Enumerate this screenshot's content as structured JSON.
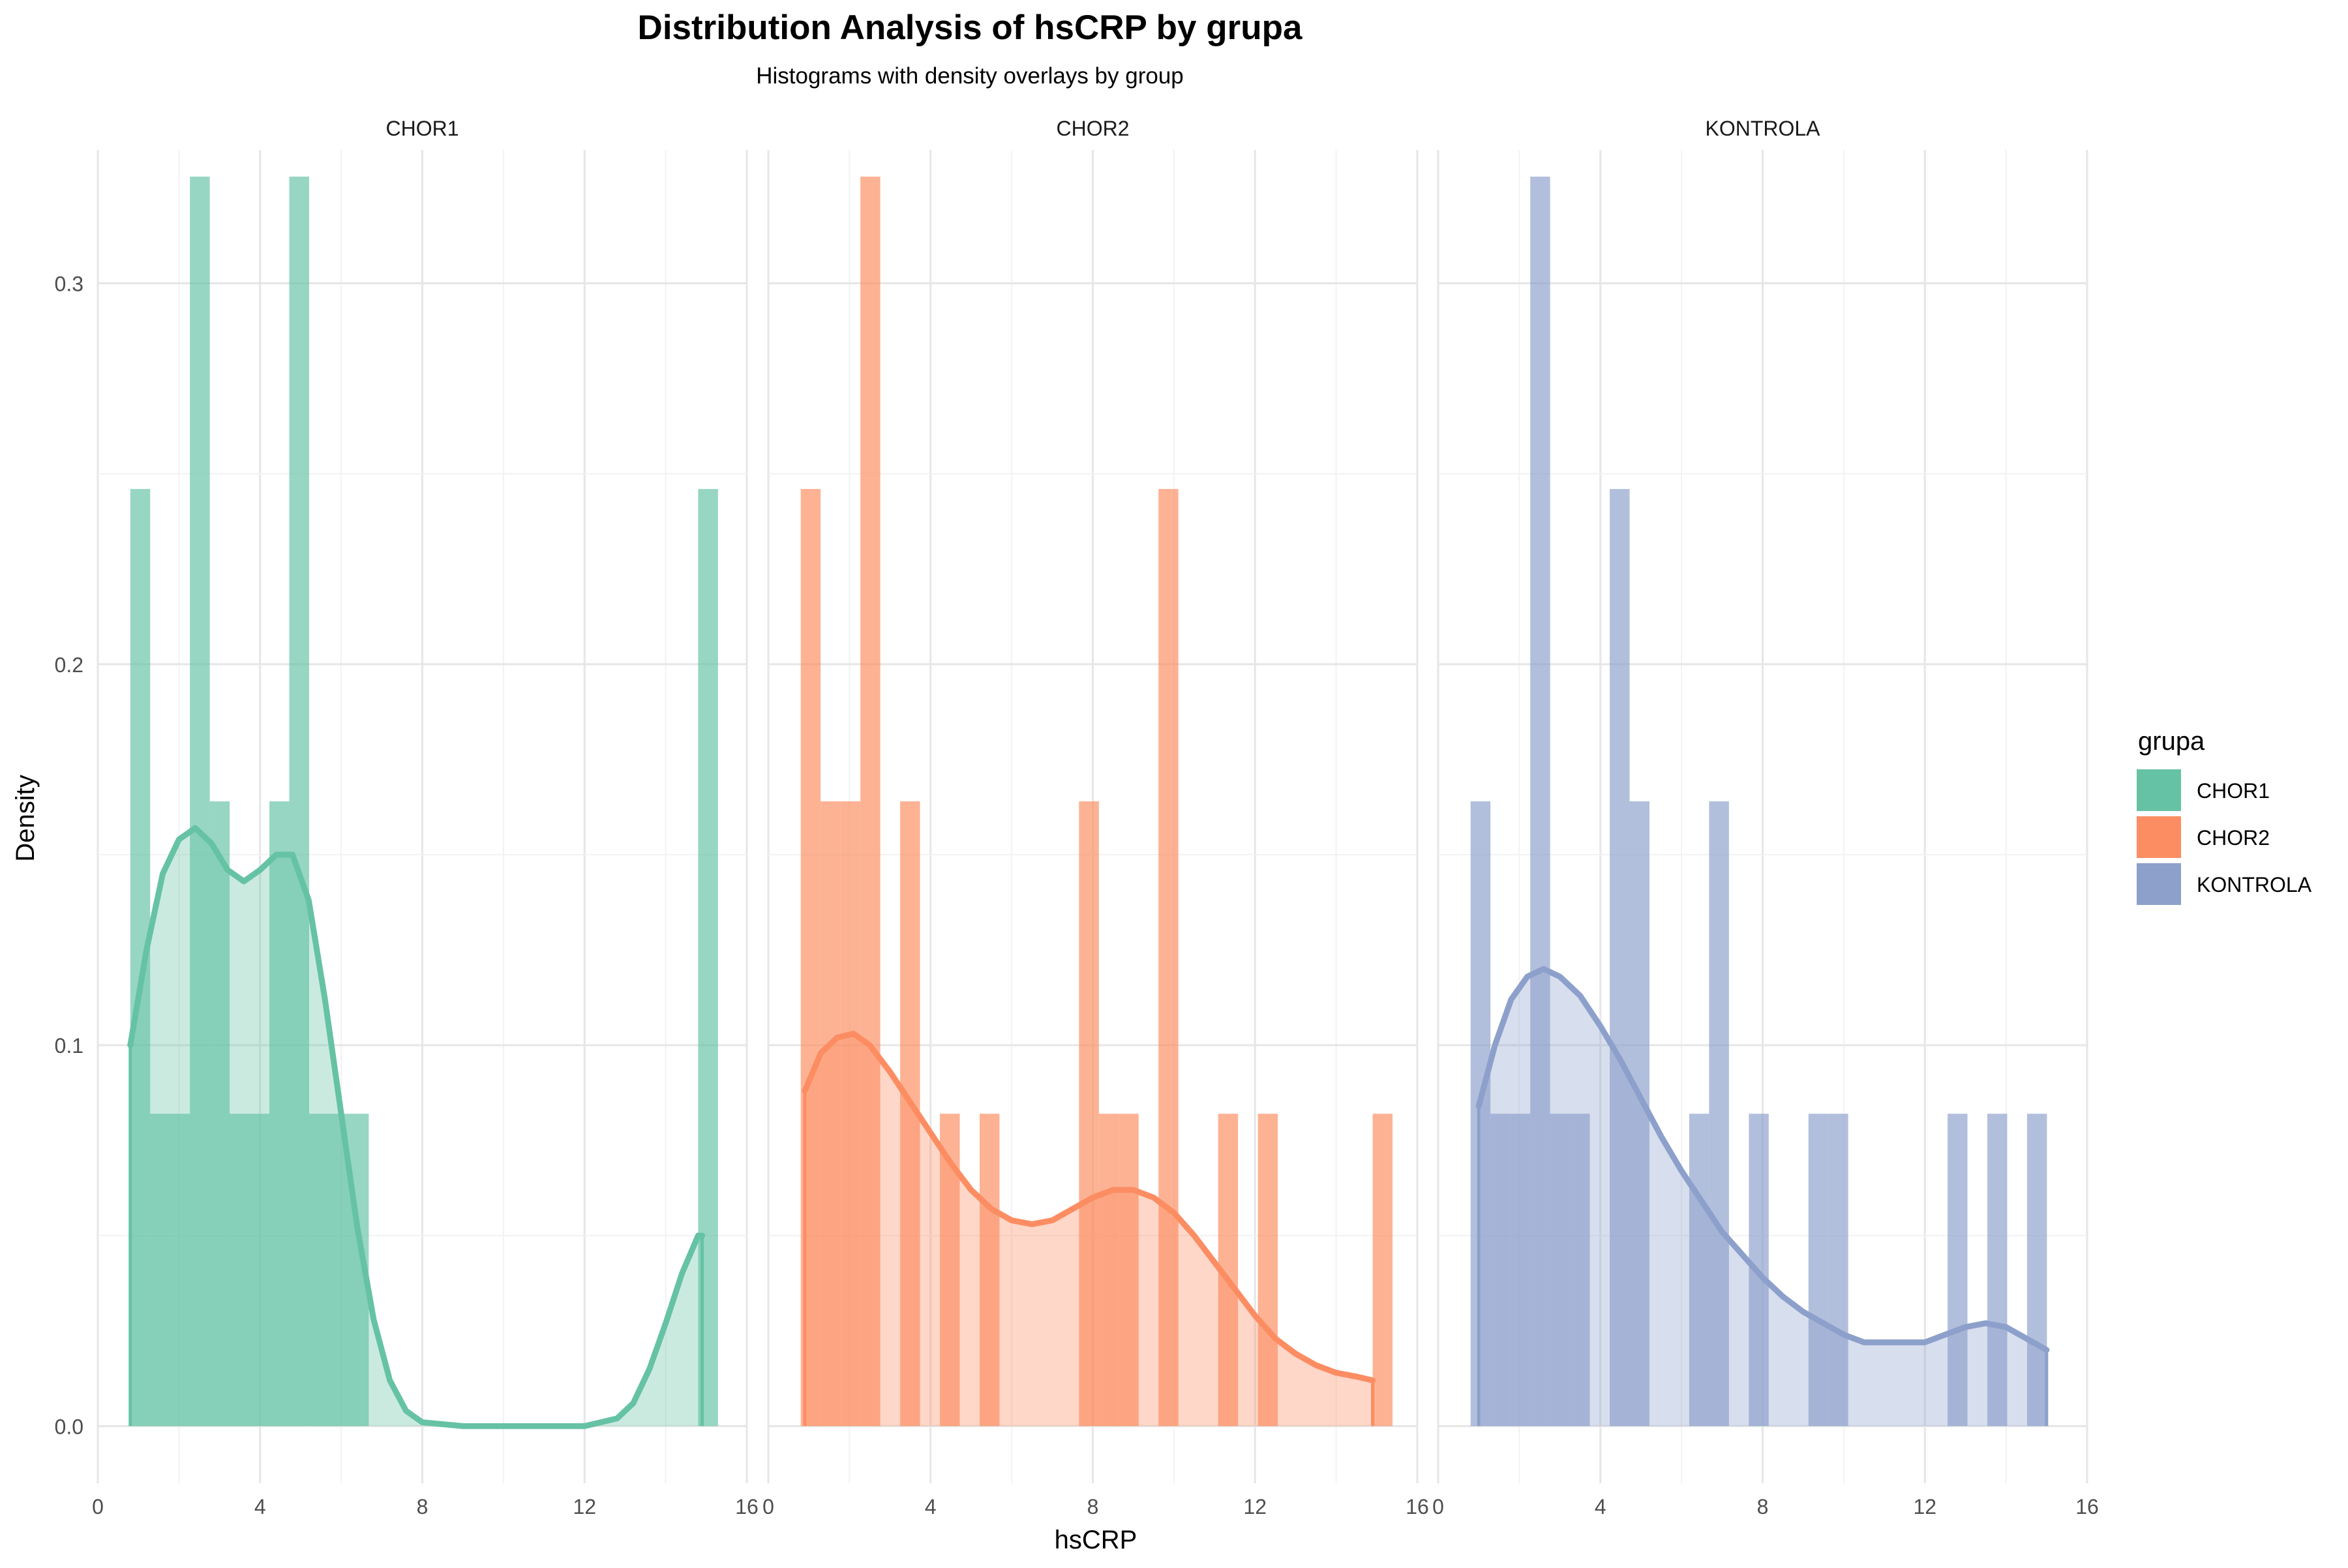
{
  "chart_data": {
    "type": "histogram-density-facets",
    "title": "Distribution Analysis of hsCRP by grupa",
    "subtitle": "Histograms with density overlays by group",
    "xlabel": "hsCRP",
    "ylabel": "Density",
    "xlim": [
      0,
      16
    ],
    "ylim": [
      -0.015,
      0.335
    ],
    "x_ticks": [
      0,
      4,
      8,
      12,
      16
    ],
    "x_tick_labels": [
      "0",
      "4",
      "8",
      "12",
      "16"
    ],
    "y_ticks": [
      0.0,
      0.1,
      0.2,
      0.3
    ],
    "y_tick_labels": [
      "0.0",
      "0.1",
      "0.2",
      "0.3"
    ],
    "grid": true,
    "legend": {
      "title": "grupa",
      "placement": "right",
      "entries": [
        "CHOR1",
        "CHOR2",
        "KONTROLA"
      ]
    },
    "facets": [
      {
        "name": "CHOR1",
        "color": "#66c2a5",
        "bin_width": 0.49,
        "bins": [
          {
            "x0": 0.8,
            "density": 0.246
          },
          {
            "x0": 1.29,
            "density": 0.082
          },
          {
            "x0": 1.78,
            "density": 0.082
          },
          {
            "x0": 2.27,
            "density": 0.328
          },
          {
            "x0": 2.76,
            "density": 0.164
          },
          {
            "x0": 3.25,
            "density": 0.082
          },
          {
            "x0": 3.74,
            "density": 0.082
          },
          {
            "x0": 4.23,
            "density": 0.164
          },
          {
            "x0": 4.72,
            "density": 0.328
          },
          {
            "x0": 5.21,
            "density": 0.082
          },
          {
            "x0": 5.7,
            "density": 0.082
          },
          {
            "x0": 6.19,
            "density": 0.082
          },
          {
            "x0": 14.8,
            "density": 0.246
          }
        ],
        "density_curve": [
          [
            0.8,
            0.1
          ],
          [
            1.2,
            0.125
          ],
          [
            1.6,
            0.145
          ],
          [
            2.0,
            0.154
          ],
          [
            2.4,
            0.157
          ],
          [
            2.8,
            0.153
          ],
          [
            3.2,
            0.146
          ],
          [
            3.6,
            0.143
          ],
          [
            4.0,
            0.146
          ],
          [
            4.4,
            0.15
          ],
          [
            4.8,
            0.15
          ],
          [
            5.2,
            0.138
          ],
          [
            5.6,
            0.112
          ],
          [
            6.0,
            0.082
          ],
          [
            6.4,
            0.052
          ],
          [
            6.8,
            0.028
          ],
          [
            7.2,
            0.012
          ],
          [
            7.6,
            0.004
          ],
          [
            8.0,
            0.001
          ],
          [
            9.0,
            0.0
          ],
          [
            10.0,
            0.0
          ],
          [
            11.0,
            0.0
          ],
          [
            12.0,
            0.0
          ],
          [
            12.8,
            0.002
          ],
          [
            13.2,
            0.006
          ],
          [
            13.6,
            0.015
          ],
          [
            14.0,
            0.027
          ],
          [
            14.4,
            0.04
          ],
          [
            14.8,
            0.05
          ],
          [
            14.9,
            0.05
          ]
        ]
      },
      {
        "name": "CHOR2",
        "color": "#fc8d62",
        "bin_width": 0.49,
        "bins": [
          {
            "x0": 0.8,
            "density": 0.246
          },
          {
            "x0": 1.29,
            "density": 0.164
          },
          {
            "x0": 1.78,
            "density": 0.164
          },
          {
            "x0": 2.27,
            "density": 0.328
          },
          {
            "x0": 2.76,
            "density": 0.0
          },
          {
            "x0": 3.25,
            "density": 0.164
          },
          {
            "x0": 3.74,
            "density": 0.0
          },
          {
            "x0": 4.23,
            "density": 0.082
          },
          {
            "x0": 4.72,
            "density": 0.0
          },
          {
            "x0": 5.21,
            "density": 0.082
          },
          {
            "x0": 7.66,
            "density": 0.164
          },
          {
            "x0": 8.15,
            "density": 0.082
          },
          {
            "x0": 8.64,
            "density": 0.082
          },
          {
            "x0": 9.62,
            "density": 0.246
          },
          {
            "x0": 11.09,
            "density": 0.082
          },
          {
            "x0": 12.07,
            "density": 0.082
          },
          {
            "x0": 14.9,
            "density": 0.082
          }
        ],
        "density_curve": [
          [
            0.9,
            0.088
          ],
          [
            1.3,
            0.098
          ],
          [
            1.7,
            0.102
          ],
          [
            2.1,
            0.103
          ],
          [
            2.5,
            0.1
          ],
          [
            3.0,
            0.093
          ],
          [
            3.5,
            0.085
          ],
          [
            4.0,
            0.077
          ],
          [
            4.5,
            0.069
          ],
          [
            5.0,
            0.062
          ],
          [
            5.5,
            0.057
          ],
          [
            6.0,
            0.054
          ],
          [
            6.5,
            0.053
          ],
          [
            7.0,
            0.054
          ],
          [
            7.5,
            0.057
          ],
          [
            8.0,
            0.06
          ],
          [
            8.5,
            0.062
          ],
          [
            9.0,
            0.062
          ],
          [
            9.5,
            0.06
          ],
          [
            10.0,
            0.056
          ],
          [
            10.5,
            0.05
          ],
          [
            11.0,
            0.043
          ],
          [
            11.5,
            0.036
          ],
          [
            12.0,
            0.029
          ],
          [
            12.5,
            0.023
          ],
          [
            13.0,
            0.019
          ],
          [
            13.5,
            0.016
          ],
          [
            14.0,
            0.014
          ],
          [
            14.5,
            0.013
          ],
          [
            14.9,
            0.012
          ]
        ]
      },
      {
        "name": "KONTROLA",
        "color": "#8da0cb",
        "bin_width": 0.49,
        "bins": [
          {
            "x0": 0.8,
            "density": 0.164
          },
          {
            "x0": 1.29,
            "density": 0.082
          },
          {
            "x0": 1.78,
            "density": 0.082
          },
          {
            "x0": 2.27,
            "density": 0.328
          },
          {
            "x0": 2.76,
            "density": 0.082
          },
          {
            "x0": 3.25,
            "density": 0.082
          },
          {
            "x0": 4.23,
            "density": 0.246
          },
          {
            "x0": 4.72,
            "density": 0.164
          },
          {
            "x0": 6.19,
            "density": 0.082
          },
          {
            "x0": 6.68,
            "density": 0.164
          },
          {
            "x0": 7.66,
            "density": 0.082
          },
          {
            "x0": 9.13,
            "density": 0.082
          },
          {
            "x0": 9.62,
            "density": 0.082
          },
          {
            "x0": 12.56,
            "density": 0.082
          },
          {
            "x0": 13.54,
            "density": 0.082
          },
          {
            "x0": 14.52,
            "density": 0.082
          }
        ],
        "density_curve": [
          [
            1.0,
            0.084
          ],
          [
            1.4,
            0.1
          ],
          [
            1.8,
            0.112
          ],
          [
            2.2,
            0.118
          ],
          [
            2.6,
            0.12
          ],
          [
            3.0,
            0.118
          ],
          [
            3.5,
            0.113
          ],
          [
            4.0,
            0.105
          ],
          [
            4.5,
            0.096
          ],
          [
            5.0,
            0.086
          ],
          [
            5.5,
            0.076
          ],
          [
            6.0,
            0.067
          ],
          [
            6.5,
            0.059
          ],
          [
            7.0,
            0.051
          ],
          [
            7.5,
            0.045
          ],
          [
            8.0,
            0.039
          ],
          [
            8.5,
            0.034
          ],
          [
            9.0,
            0.03
          ],
          [
            9.5,
            0.027
          ],
          [
            10.0,
            0.024
          ],
          [
            10.5,
            0.022
          ],
          [
            11.0,
            0.022
          ],
          [
            11.5,
            0.022
          ],
          [
            12.0,
            0.022
          ],
          [
            12.5,
            0.024
          ],
          [
            13.0,
            0.026
          ],
          [
            13.5,
            0.027
          ],
          [
            14.0,
            0.026
          ],
          [
            14.5,
            0.023
          ],
          [
            15.0,
            0.02
          ]
        ]
      }
    ]
  }
}
